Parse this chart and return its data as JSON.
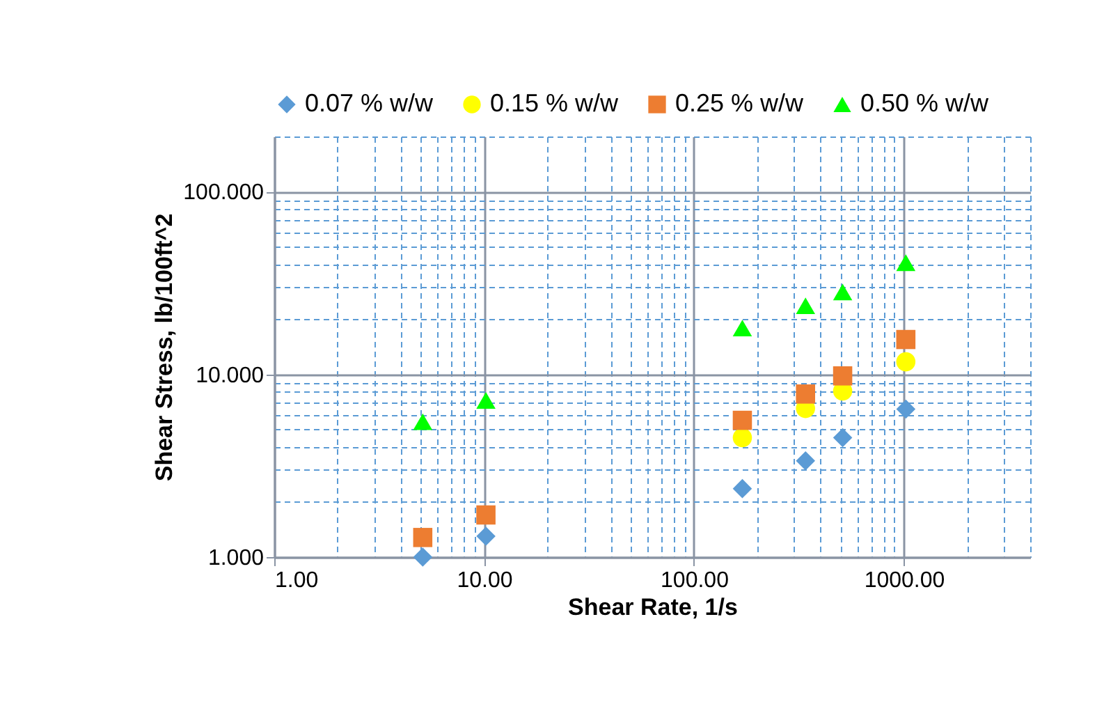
{
  "chart_data": {
    "type": "scatter",
    "xlabel": "Shear Rate, 1/s",
    "ylabel": "Shear Stress, lb/100ft^2",
    "log": "xy",
    "grid": true,
    "legend": "top",
    "x": [
      5.1,
      10.2,
      170,
      340,
      511,
      1022
    ],
    "series": [
      {
        "name": "0.07 % w/w",
        "color": "#5b9bd5",
        "marker": "diamond",
        "values": [
          1.0,
          1.3,
          2.37,
          3.36,
          4.5,
          6.45
        ]
      },
      {
        "name": "0.15 % w/w",
        "color": "#ffff00",
        "marker": "circle",
        "values": [
          null,
          null,
          4.5,
          6.5,
          8.1,
          11.7
        ]
      },
      {
        "name": "0.25 % w/w",
        "color": "#ed7d31",
        "marker": "square",
        "values": [
          1.28,
          1.7,
          5.6,
          7.8,
          9.8,
          15.5
        ]
      },
      {
        "name": "0.50 % w/w",
        "color": "#00ff00",
        "marker": "triangle",
        "values": [
          5.5,
          7.2,
          17.9,
          23.7,
          28.2,
          40.8
        ]
      }
    ],
    "xlim": [
      1,
      4000
    ],
    "xticks": [
      {
        "value": 1,
        "label": "1.00"
      },
      {
        "value": 2,
        "label": null
      },
      {
        "value": 3,
        "label": null
      },
      {
        "value": 4,
        "label": null
      },
      {
        "value": 5,
        "label": null
      },
      {
        "value": 6,
        "label": null
      },
      {
        "value": 7,
        "label": null
      },
      {
        "value": 8,
        "label": null
      },
      {
        "value": 9,
        "label": null
      },
      {
        "value": 10,
        "label": "10.00"
      },
      {
        "value": 20,
        "label": null
      },
      {
        "value": 30,
        "label": null
      },
      {
        "value": 40,
        "label": null
      },
      {
        "value": 50,
        "label": null
      },
      {
        "value": 60,
        "label": null
      },
      {
        "value": 70,
        "label": null
      },
      {
        "value": 80,
        "label": null
      },
      {
        "value": 90,
        "label": null
      },
      {
        "value": 100,
        "label": "100.00"
      },
      {
        "value": 200,
        "label": null
      },
      {
        "value": 300,
        "label": null
      },
      {
        "value": 400,
        "label": null
      },
      {
        "value": 500,
        "label": null
      },
      {
        "value": 600,
        "label": null
      },
      {
        "value": 700,
        "label": null
      },
      {
        "value": 800,
        "label": null
      },
      {
        "value": 900,
        "label": null
      },
      {
        "value": 1000,
        "label": "1000.00"
      },
      {
        "value": 2000,
        "label": null
      },
      {
        "value": 3000,
        "label": null
      },
      {
        "value": 4000,
        "label": null
      }
    ],
    "ylim": [
      1,
      200
    ],
    "yticks": [
      {
        "value": 1,
        "label": "1.000"
      },
      {
        "value": 2,
        "label": null
      },
      {
        "value": 3,
        "label": null
      },
      {
        "value": 4,
        "label": null
      },
      {
        "value": 5,
        "label": null
      },
      {
        "value": 6,
        "label": null
      },
      {
        "value": 7,
        "label": null
      },
      {
        "value": 8,
        "label": null
      },
      {
        "value": 9,
        "label": null
      },
      {
        "value": 10,
        "label": "10.000"
      },
      {
        "value": 20,
        "label": null
      },
      {
        "value": 30,
        "label": null
      },
      {
        "value": 40,
        "label": null
      },
      {
        "value": 50,
        "label": null
      },
      {
        "value": 60,
        "label": null
      },
      {
        "value": 70,
        "label": null
      },
      {
        "value": 80,
        "label": null
      },
      {
        "value": 90,
        "label": null
      },
      {
        "value": 100,
        "label": "100.000"
      },
      {
        "value": 200,
        "label": null
      }
    ]
  }
}
